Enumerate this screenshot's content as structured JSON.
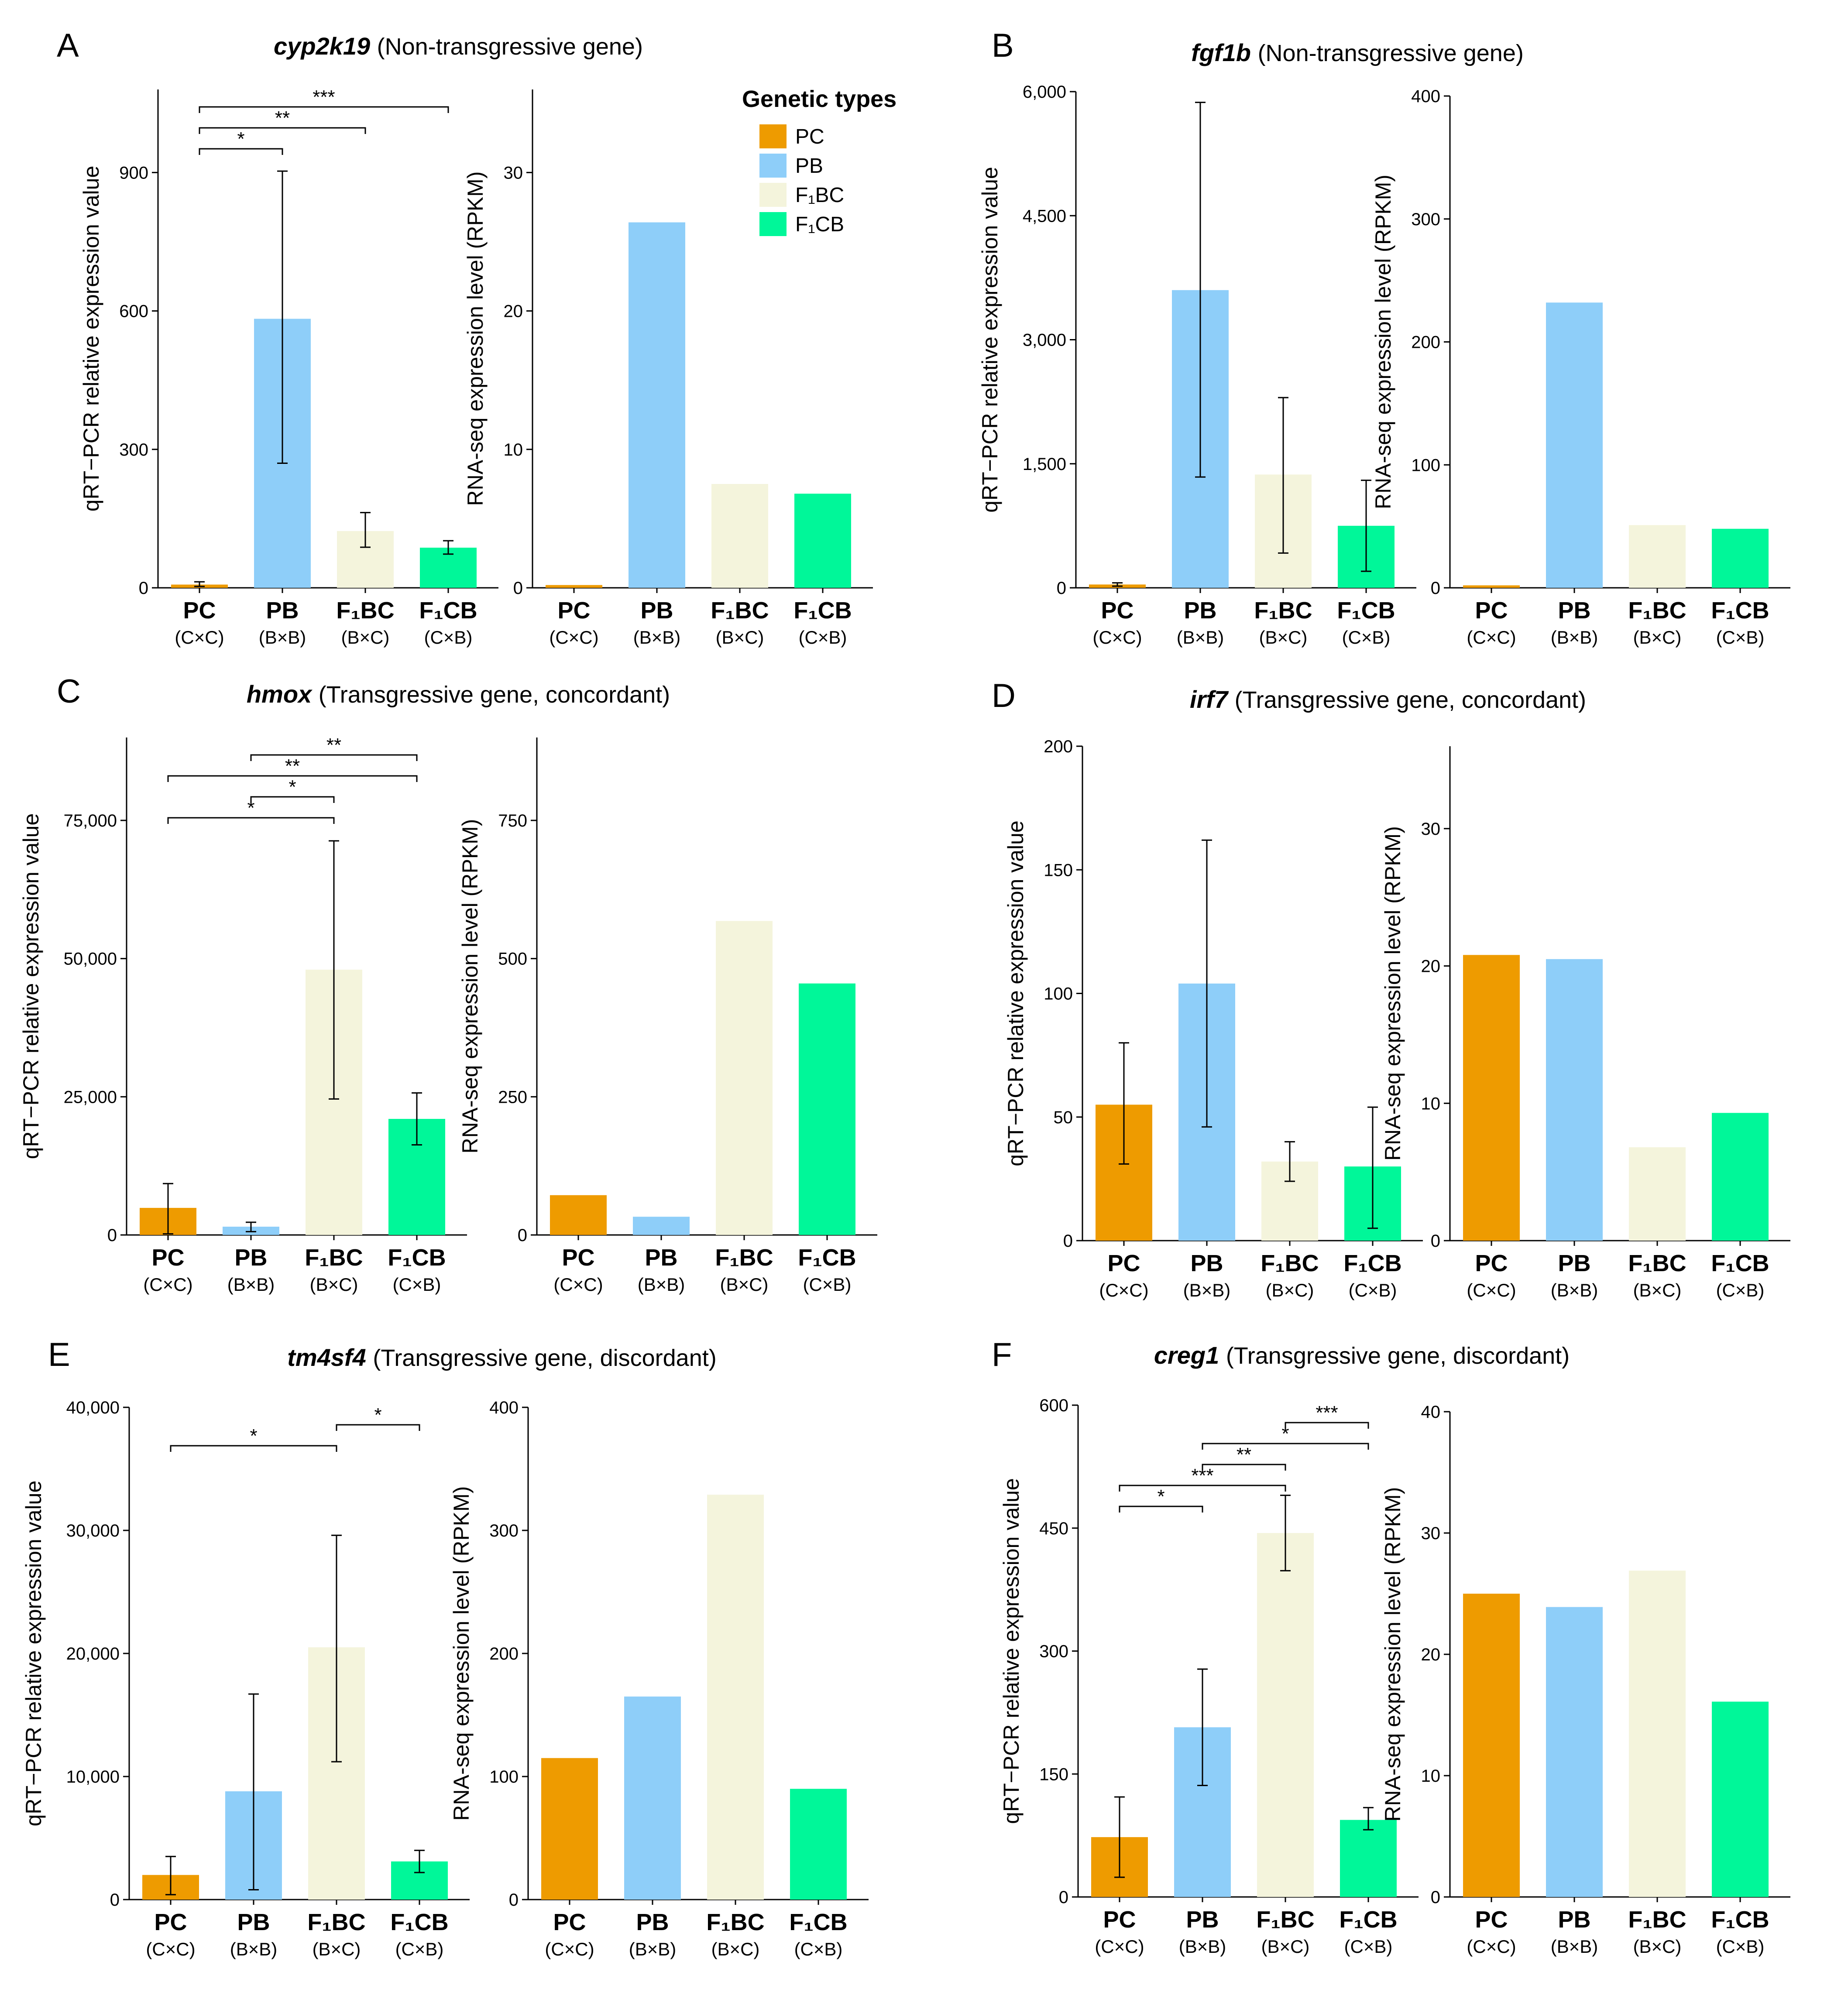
{
  "colors": {
    "PC": "#EE9B00",
    "PB": "#8ECEF9",
    "F1BC": "#F4F4DC",
    "F1CB": "#00F799",
    "axis": "#000000"
  },
  "legend": {
    "title": "Genetic types",
    "items": [
      {
        "key": "PC",
        "label": "PC"
      },
      {
        "key": "PB",
        "label": "PB"
      },
      {
        "key": "F1BC",
        "label": "F₁BC"
      },
      {
        "key": "F1CB",
        "label": "F₁CB"
      }
    ]
  },
  "axis_labels": {
    "qpcr": "qRT−PCR relative expression value",
    "rnaseq": "RNA-seq expression level (RPKM)"
  },
  "chart_data": [
    {
      "panel": "A",
      "gene": "cyp2k19",
      "description": "(Non-transgressive gene)",
      "charts": [
        {
          "type": "bar",
          "ylabel": "qRT−PCR relative expression value",
          "categories": [
            "PC",
            "PB",
            "F₁BC",
            "F₁CB"
          ],
          "subcategories": [
            "(C×C)",
            "(B×B)",
            "(B×C)",
            "(C×B)"
          ],
          "keys": [
            "PC",
            "PB",
            "F1BC",
            "F1CB"
          ],
          "values": [
            7,
            583,
            123,
            87
          ],
          "err_low": [
            3,
            270,
            88,
            73
          ],
          "err_high": [
            13,
            903,
            163,
            102
          ],
          "ylim": [
            0,
            1080
          ],
          "yticks": [
            0,
            300,
            600,
            900
          ],
          "tick_labels": [
            "0",
            "300",
            "600",
            "900"
          ],
          "significance": [
            {
              "from": 0,
              "to": 1,
              "label": "*",
              "level": 1
            },
            {
              "from": 0,
              "to": 2,
              "label": "**",
              "level": 2
            },
            {
              "from": 0,
              "to": 3,
              "label": "***",
              "level": 3
            }
          ]
        },
        {
          "type": "bar",
          "ylabel": "RNA-seq expression level (RPKM)",
          "categories": [
            "PC",
            "PB",
            "F₁BC",
            "F₁CB"
          ],
          "subcategories": [
            "(C×C)",
            "(B×B)",
            "(B×C)",
            "(C×B)"
          ],
          "keys": [
            "PC",
            "PB",
            "F1BC",
            "F1CB"
          ],
          "values": [
            0.2,
            26.4,
            7.5,
            6.8
          ],
          "ylim": [
            0,
            36
          ],
          "yticks": [
            0,
            10,
            20,
            30
          ],
          "tick_labels": [
            "0",
            "10",
            "20",
            "30"
          ],
          "significance": []
        }
      ]
    },
    {
      "panel": "B",
      "gene": "fgf1b",
      "description": "(Non-transgressive gene)",
      "charts": [
        {
          "type": "bar",
          "ylabel": "qRT−PCR relative expression value",
          "categories": [
            "PC",
            "PB",
            "F₁BC",
            "F₁CB"
          ],
          "subcategories": [
            "(C×C)",
            "(B×B)",
            "(B×C)",
            "(C×B)"
          ],
          "keys": [
            "PC",
            "PB",
            "F1BC",
            "F1CB"
          ],
          "values": [
            40,
            3600,
            1370,
            750
          ],
          "err_low": [
            20,
            1340,
            420,
            200
          ],
          "err_high": [
            60,
            5870,
            2300,
            1300
          ],
          "ylim": [
            0,
            6000
          ],
          "yticks": [
            0,
            1500,
            3000,
            4500,
            6000
          ],
          "tick_labels": [
            "0",
            "1,500",
            "3,000",
            "4,500",
            "6,000"
          ],
          "significance": []
        },
        {
          "type": "bar",
          "ylabel": "RNA-seq expression level (RPKM)",
          "categories": [
            "PC",
            "PB",
            "F₁BC",
            "F₁CB"
          ],
          "subcategories": [
            "(C×C)",
            "(B×B)",
            "(B×C)",
            "(C×B)"
          ],
          "keys": [
            "PC",
            "PB",
            "F1BC",
            "F1CB"
          ],
          "values": [
            2,
            232,
            51,
            48
          ],
          "ylim": [
            0,
            400
          ],
          "yticks": [
            0,
            100,
            200,
            300,
            400
          ],
          "tick_labels": [
            "0",
            "100",
            "200",
            "300",
            "400"
          ],
          "significance": []
        }
      ]
    },
    {
      "panel": "C",
      "gene": "hmox",
      "description": "(Transgressive gene, concordant)",
      "charts": [
        {
          "type": "bar",
          "ylabel": "qRT−PCR relative expression value",
          "categories": [
            "PC",
            "PB",
            "F₁BC",
            "F₁CB"
          ],
          "subcategories": [
            "(C×C)",
            "(B×B)",
            "(B×C)",
            "(C×B)"
          ],
          "keys": [
            "PC",
            "PB",
            "F1BC",
            "F1CB"
          ],
          "values": [
            4900,
            1500,
            48000,
            21000
          ],
          "err_low": [
            200,
            600,
            24600,
            16300
          ],
          "err_high": [
            9300,
            2300,
            71300,
            25700
          ],
          "ylim": [
            0,
            90000
          ],
          "yticks": [
            0,
            25000,
            50000,
            75000
          ],
          "tick_labels": [
            "0",
            "25,000",
            "50,000",
            "75,000"
          ],
          "significance": [
            {
              "from": 0,
              "to": 2,
              "label": "*",
              "level": 1
            },
            {
              "from": 1,
              "to": 2,
              "label": "*",
              "level": 2
            },
            {
              "from": 0,
              "to": 3,
              "label": "**",
              "level": 3
            },
            {
              "from": 1,
              "to": 3,
              "label": "**",
              "level": 4
            }
          ]
        },
        {
          "type": "bar",
          "ylabel": "RNA-seq expression level (RPKM)",
          "categories": [
            "PC",
            "PB",
            "F₁BC",
            "F₁CB"
          ],
          "subcategories": [
            "(C×C)",
            "(B×B)",
            "(B×C)",
            "(C×B)"
          ],
          "keys": [
            "PC",
            "PB",
            "F1BC",
            "F1CB"
          ],
          "values": [
            72,
            33,
            568,
            455
          ],
          "ylim": [
            0,
            900
          ],
          "yticks": [
            0,
            250,
            500,
            750
          ],
          "tick_labels": [
            "0",
            "250",
            "500",
            "750"
          ],
          "significance": []
        }
      ]
    },
    {
      "panel": "D",
      "gene": "irf7",
      "description": "(Transgressive gene, concordant)",
      "charts": [
        {
          "type": "bar",
          "ylabel": "qRT−PCR relative expression value",
          "categories": [
            "PC",
            "PB",
            "F₁BC",
            "F₁CB"
          ],
          "subcategories": [
            "(C×C)",
            "(B×B)",
            "(B×C)",
            "(C×B)"
          ],
          "keys": [
            "PC",
            "PB",
            "F1BC",
            "F1CB"
          ],
          "values": [
            55,
            104,
            32,
            30
          ],
          "err_low": [
            31,
            46,
            24,
            5
          ],
          "err_high": [
            80,
            162,
            40,
            54
          ],
          "ylim": [
            0,
            200
          ],
          "yticks": [
            0,
            50,
            100,
            150,
            200
          ],
          "tick_labels": [
            "0",
            "50",
            "100",
            "150",
            "200"
          ],
          "significance": []
        },
        {
          "type": "bar",
          "ylabel": "RNA-seq expression level (RPKM)",
          "categories": [
            "PC",
            "PB",
            "F₁BC",
            "F₁CB"
          ],
          "subcategories": [
            "(C×C)",
            "(B×B)",
            "(B×C)",
            "(C×B)"
          ],
          "keys": [
            "PC",
            "PB",
            "F1BC",
            "F1CB"
          ],
          "values": [
            20.8,
            20.5,
            6.8,
            9.3
          ],
          "ylim": [
            0,
            36
          ],
          "yticks": [
            0,
            10,
            20,
            30
          ],
          "tick_labels": [
            "0",
            "10",
            "20",
            "30"
          ],
          "significance": []
        }
      ]
    },
    {
      "panel": "E",
      "gene": "tm4sf4",
      "description": "(Transgressive gene, discordant)",
      "charts": [
        {
          "type": "bar",
          "ylabel": "qRT−PCR relative expression value",
          "categories": [
            "PC",
            "PB",
            "F₁BC",
            "F₁CB"
          ],
          "subcategories": [
            "(C×C)",
            "(B×B)",
            "(B×C)",
            "(C×B)"
          ],
          "keys": [
            "PC",
            "PB",
            "F1BC",
            "F1CB"
          ],
          "values": [
            2000,
            8800,
            20500,
            3100
          ],
          "err_low": [
            400,
            800,
            11200,
            2200
          ],
          "err_high": [
            3500,
            16700,
            29600,
            4000
          ],
          "ylim": [
            0,
            40000
          ],
          "yticks": [
            0,
            10000,
            20000,
            30000,
            40000
          ],
          "tick_labels": [
            "0",
            "10,000",
            "20,000",
            "30,000",
            "40,000"
          ],
          "significance": [
            {
              "from": 2,
              "to": 3,
              "label": "*",
              "level": 2
            },
            {
              "from": 0,
              "to": 2,
              "label": "*",
              "level": 1
            }
          ]
        },
        {
          "type": "bar",
          "ylabel": "RNA-seq expression level (RPKM)",
          "categories": [
            "PC",
            "PB",
            "F₁BC",
            "F₁CB"
          ],
          "subcategories": [
            "(C×C)",
            "(B×B)",
            "(B×C)",
            "(C×B)"
          ],
          "keys": [
            "PC",
            "PB",
            "F1BC",
            "F1CB"
          ],
          "values": [
            115,
            165,
            329,
            90
          ],
          "ylim": [
            0,
            400
          ],
          "yticks": [
            0,
            100,
            200,
            300,
            400
          ],
          "tick_labels": [
            "0",
            "100",
            "200",
            "300",
            "400"
          ],
          "significance": []
        }
      ]
    },
    {
      "panel": "F",
      "gene": "creg1",
      "description": "(Transgressive gene, discordant)",
      "charts": [
        {
          "type": "bar",
          "ylabel": "qRT−PCR relative expression value",
          "categories": [
            "PC",
            "PB",
            "F₁BC",
            "F₁CB"
          ],
          "subcategories": [
            "(C×C)",
            "(B×B)",
            "(B×C)",
            "(C×B)"
          ],
          "keys": [
            "PC",
            "PB",
            "F1BC",
            "F1CB"
          ],
          "values": [
            73,
            207,
            444,
            94
          ],
          "err_low": [
            24,
            136,
            398,
            82
          ],
          "err_high": [
            122,
            278,
            490,
            109
          ],
          "ylim": [
            0,
            600
          ],
          "yticks": [
            0,
            150,
            300,
            450,
            600
          ],
          "tick_labels": [
            "0",
            "150",
            "300",
            "450",
            "600"
          ],
          "significance": [
            {
              "from": 0,
              "to": 1,
              "label": "*",
              "level": 1
            },
            {
              "from": 0,
              "to": 2,
              "label": "***",
              "level": 2
            },
            {
              "from": 1,
              "to": 2,
              "label": "**",
              "level": 3
            },
            {
              "from": 1,
              "to": 3,
              "label": "*",
              "level": 4
            },
            {
              "from": 2,
              "to": 3,
              "label": "***",
              "level": 5
            }
          ]
        },
        {
          "type": "bar",
          "ylabel": "RNA-seq expression level (RPKM)",
          "categories": [
            "PC",
            "PB",
            "F₁BC",
            "F₁CB"
          ],
          "subcategories": [
            "(C×C)",
            "(B×B)",
            "(B×C)",
            "(C×B)"
          ],
          "keys": [
            "PC",
            "PB",
            "F1BC",
            "F1CB"
          ],
          "values": [
            25,
            23.9,
            26.9,
            16.1
          ],
          "ylim": [
            0,
            40
          ],
          "yticks": [
            0,
            10,
            20,
            30,
            40
          ],
          "tick_labels": [
            "0",
            "10",
            "20",
            "30",
            "40"
          ],
          "significance": []
        }
      ]
    }
  ]
}
